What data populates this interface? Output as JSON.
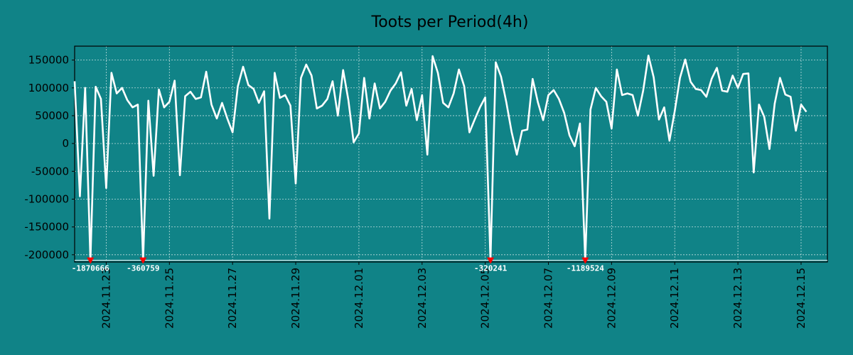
{
  "chart_data": {
    "type": "line",
    "title": "Toots per Period(4h)",
    "xlabel": "",
    "ylabel": "",
    "ylim": [
      -213000,
      175000
    ],
    "x_start": "2024.11.22 00:00",
    "x_end": "2024.12.15 20:00",
    "x_interval_hours": 4,
    "xtick_labels": [
      "2024.11.23",
      "2024.11.25",
      "2024.11.27",
      "2024.11.29",
      "2024.12.01",
      "2024.12.03",
      "2024.12.05",
      "2024.12.07",
      "2024.12.09",
      "2024.12.11",
      "2024.12.13",
      "2024.12.15"
    ],
    "yticks": [
      150000,
      100000,
      50000,
      0,
      -50000,
      -100000,
      -150000,
      -200000
    ],
    "ytick_labels": [
      "150000",
      "100000",
      "50000",
      "0",
      "-50000",
      "-100000",
      "-150000",
      "-200000"
    ],
    "clip_floor": -210000,
    "series": [
      {
        "name": "Toots",
        "color": "#ffffff",
        "values": [
          112000,
          -95000,
          100000,
          -210000,
          102000,
          80000,
          -80000,
          127000,
          90000,
          100000,
          78000,
          65000,
          70000,
          -210000,
          77000,
          -58000,
          97000,
          65000,
          75000,
          113000,
          -57000,
          85000,
          93000,
          80000,
          83000,
          129000,
          70000,
          45000,
          73000,
          45000,
          20000,
          103000,
          138000,
          105000,
          98000,
          73000,
          94000,
          -135000,
          127000,
          82000,
          87000,
          68000,
          -72000,
          118000,
          142000,
          122000,
          63000,
          68000,
          80000,
          112000,
          50000,
          132000,
          78000,
          2000,
          18000,
          118000,
          45000,
          108000,
          63000,
          75000,
          95000,
          108000,
          128000,
          68000,
          98000,
          42000,
          87000,
          -20000,
          157000,
          127000,
          73000,
          65000,
          90000,
          133000,
          103000,
          20000,
          43000,
          65000,
          83000,
          -210000,
          146000,
          120000,
          74000,
          21000,
          -20000,
          23000,
          25000,
          116000,
          74000,
          42000,
          87000,
          96000,
          80000,
          55000,
          15000,
          -5000,
          36000,
          -210000,
          61000,
          100000,
          85000,
          75000,
          27000,
          133000,
          87000,
          90000,
          87000,
          50000,
          95000,
          158000,
          119000,
          43000,
          65000,
          5000,
          58000,
          118000,
          151000,
          111000,
          98000,
          96000,
          84000,
          116000,
          136000,
          95000,
          93000,
          122000,
          100000,
          125000,
          126000,
          -52000,
          70000,
          48000,
          -10000,
          72000,
          118000,
          88000,
          84000,
          23000,
          70000,
          57000
        ],
        "outliers": [
          {
            "index": 3,
            "value": -1870666,
            "label": "-1870666"
          },
          {
            "index": 13,
            "value": -360759,
            "label": "-360759"
          },
          {
            "index": 79,
            "value": -320241,
            "label": "-320241"
          },
          {
            "index": 97,
            "value": -1189524,
            "label": "-1189524"
          }
        ]
      }
    ],
    "grid": true,
    "colors": {
      "background": "#108387",
      "line": "#ffffff",
      "marker": "#ff0000",
      "grid": "#cfe6e6",
      "axis": "#000000"
    }
  }
}
